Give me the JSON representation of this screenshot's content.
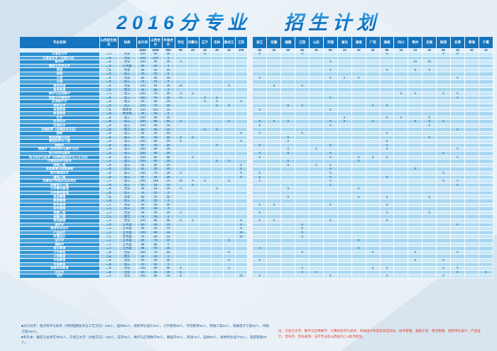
{
  "title": {
    "part1": "2016分专业",
    "part2": "招生计划"
  },
  "colors": {
    "header_blue": "#1474bd",
    "name_blue": "#2b91d2",
    "row_light": "#c7e7f8",
    "row_mid": "#a6d7f2",
    "title_blue": "#1079c9",
    "note_red": "#e03a2d",
    "note_blue": "#24629f"
  },
  "table": {
    "headers_left": [
      "专业名称",
      "山西招生批次",
      "科类",
      "总计划",
      "山西合计",
      "外省合计"
    ],
    "provinces_left": [
      "河北",
      "内蒙古",
      "辽宁",
      "吉林",
      "黑龙江",
      "江苏"
    ],
    "provinces_right": [
      "浙江",
      "安徽",
      "福建",
      "江西",
      "山东",
      "河南",
      "湖北",
      "湖南",
      "广西",
      "海南",
      "四川",
      "贵州",
      "云南",
      "陕西",
      "甘肃",
      "青海",
      "宁夏"
    ],
    "totals": {
      "total": 4260,
      "shanxi": 3268,
      "other": 992,
      "provinces": {
        "河北": 80,
        "内蒙古": 40,
        "辽宁": 30,
        "吉林": 30,
        "黑龙江": 30,
        "江苏": 100,
        "浙江": 92,
        "安徽": 20,
        "福建": 50,
        "江西": 60,
        "山东": 30,
        "河南": 80,
        "湖北": 10,
        "湖南": 30,
        "广西": 30,
        "海南": 80,
        "四川": 10,
        "贵州": 10,
        "云南": 30,
        "陕西": 80,
        "甘肃": 30,
        "青海": 30,
        "宁夏": 10
      }
    },
    "rows": [
      {
        "name": "汉语言文学",
        "batch": "二A",
        "cat": "文史",
        "total": 120,
        "shanxi": 90,
        "other": 30,
        "p": {
          "辽宁": 5,
          "浙江": 5,
          "江西": 5,
          "海南": 5,
          "陕西": 5,
          "甘肃": 5
        }
      },
      {
        "name": "汉语言文学（文秘方向）",
        "batch": "二B",
        "cat": "文史",
        "total": 120,
        "shanxi": 120,
        "other": 0,
        "p": {}
      },
      {
        "name": "秘书学",
        "batch": "二B",
        "cat": "文史",
        "total": 120,
        "shanxi": 90,
        "other": 30,
        "p": {
          "河北": 5,
          "河南": 5,
          "贵州": 10,
          "云南": 10
        }
      },
      {
        "name": "播音与主持艺术",
        "batch": "二B",
        "cat": "艺术类",
        "total": 50,
        "shanxi": 50,
        "other": 0,
        "p": {}
      },
      {
        "name": "英语",
        "batch": "二B",
        "cat": "文史",
        "total": 60,
        "shanxi": 40,
        "other": 20,
        "p": {
          "河南": 5,
          "海南": 5,
          "贵州": 5,
          "云南": 5
        }
      },
      {
        "name": "英语",
        "batch": "二B",
        "cat": "理工",
        "total": 20,
        "shanxi": 20,
        "other": 0,
        "p": {}
      },
      {
        "name": "日语",
        "batch": "二B",
        "cat": "文史",
        "total": 60,
        "shanxi": 35,
        "other": 25,
        "p": {
          "浙江": 5,
          "河南": 5,
          "湖北": 5,
          "湖南": 5,
          "甘肃": 5
        }
      },
      {
        "name": "日语",
        "batch": "二B",
        "cat": "理工",
        "total": 15,
        "shanxi": 15,
        "other": 0,
        "p": {}
      },
      {
        "name": "商务英语",
        "batch": "二B",
        "cat": "文史",
        "total": 120,
        "shanxi": 95,
        "other": 25,
        "p": {
          "河北": 10,
          "黑龙江": 5,
          "安徽": 5,
          "江西": 5
        }
      },
      {
        "name": "商务英语",
        "batch": "二B",
        "cat": "理工",
        "total": 30,
        "shanxi": 30,
        "other": 0,
        "p": {}
      },
      {
        "name": "数学与应用数学",
        "batch": "二A",
        "cat": "理工",
        "total": 100,
        "shanxi": 70,
        "other": 30,
        "p": {
          "河北": 5,
          "内蒙古": 5,
          "四川": 5,
          "贵州": 5,
          "陕西": 5,
          "甘肃": 5
        }
      },
      {
        "name": "信息与计算科学",
        "batch": "二B",
        "cat": "理工",
        "total": 100,
        "shanxi": 75,
        "other": 25,
        "p": {
          "河北": 5,
          "辽宁": 5,
          "吉林": 5,
          "河南": 5,
          "甘肃": 5
        }
      },
      {
        "name": "应用统计学",
        "batch": "二B",
        "cat": "理工",
        "total": 50,
        "shanxi": 35,
        "other": 15,
        "p": {
          "辽宁": 5,
          "吉林": 5,
          "江苏": 5
        }
      },
      {
        "name": "材料化学",
        "batch": "二B",
        "cat": "理工",
        "total": 100,
        "shanxi": 70,
        "other": 30,
        "p": {
          "吉林": 5,
          "黑龙江": 5,
          "福建": 5,
          "江西": 5,
          "广西": 5,
          "海南": 5
        }
      },
      {
        "name": "体育教育",
        "batch": "二B",
        "cat": "体育文",
        "total": 120,
        "shanxi": 110,
        "other": 10,
        "p": {
          "浙江": 5,
          "河南": 5
        }
      },
      {
        "name": "体育教育",
        "batch": "二B",
        "cat": "体育理",
        "total": 40,
        "shanxi": 40,
        "other": 0,
        "p": {}
      },
      {
        "name": "化学",
        "batch": "二B",
        "cat": "理工",
        "total": 100,
        "shanxi": 80,
        "other": 20,
        "p": {
          "湖北": 5,
          "海南": 5,
          "四川": 5,
          "云南": 5
        }
      },
      {
        "name": "应用化学",
        "batch": "二B",
        "cat": "理工",
        "total": 150,
        "shanxi": 95,
        "other": 55,
        "p": {
          "河北": 5,
          "黑龙江": 5,
          "浙江": 5,
          "安徽": 5,
          "福建": 5,
          "河南": 5,
          "湖北": 5,
          "广西": 5,
          "贵州": 5,
          "云南": 5,
          "陕西": 5
        }
      },
      {
        "name": "生物科学",
        "batch": "二B",
        "cat": "理工",
        "total": 100,
        "shanxi": 85,
        "other": 15,
        "p": {
          "浙江": 5,
          "河南": 5,
          "云南": 5
        }
      },
      {
        "name": "生物科学（生物技术方向）",
        "batch": "二B",
        "cat": "理工",
        "total": 50,
        "shanxi": 35,
        "other": 15,
        "p": {
          "辽宁": 5,
          "吉林": 5,
          "甘肃": 5
        }
      },
      {
        "name": "园林",
        "batch": "二B",
        "cat": "理工",
        "total": 50,
        "shanxi": 30,
        "other": 20,
        "p": {
          "江苏": 5,
          "浙江": 5,
          "江西": 5,
          "海南": 5
        }
      },
      {
        "name": "食品质量与安全",
        "batch": "二B",
        "cat": "理工",
        "total": 50,
        "shanxi": 30,
        "other": 20,
        "p": {
          "河北": 5,
          "内蒙古": 5,
          "福建": 5,
          "云南": 5
        }
      },
      {
        "name": "食品科学与工程",
        "batch": "二B",
        "cat": "理工",
        "total": 100,
        "shanxi": 80,
        "other": 20,
        "p": {
          "河北": 5,
          "江苏": 5,
          "福建": 5,
          "海南": 5
        }
      },
      {
        "name": "物理学",
        "batch": "二B",
        "cat": "理工",
        "total": 50,
        "shanxi": 30,
        "other": 20,
        "p": {
          "吉林": 5,
          "浙江": 5,
          "河南": 5,
          "海南": 5
        }
      },
      {
        "name": "物理学（光伏材料与器件方向）",
        "batch": "二B",
        "cat": "理工",
        "total": 100,
        "shanxi": 80,
        "other": 20,
        "p": {
          "福建": 5,
          "山东": 5,
          "海南": 5,
          "甘肃": 5
        }
      },
      {
        "name": "电子科学与技术",
        "batch": "二B",
        "cat": "理工",
        "total": 100,
        "shanxi": 80,
        "other": 20,
        "p": {
          "浙江": 5,
          "福建": 5,
          "河南": 5,
          "陕西": 5
        }
      },
      {
        "name": "电子科学与技术（印制电路技术与工艺方向）",
        "batch": "二B",
        "cat": "理工",
        "total": 100,
        "shanxi": 65,
        "other": 35,
        "p": {
          "内蒙古": 5,
          "浙江": 5,
          "河南": 5,
          "湖南": 5,
          "广西": 5,
          "海南": 5,
          "甘肃": 5
        }
      },
      {
        "name": "计算机科学与技术",
        "batch": "二A",
        "cat": "理工",
        "total": 100,
        "shanxi": 80,
        "other": 20,
        "p": {
          "吉林": 5,
          "黑龙江": 5,
          "福建": 5,
          "湖南": 5
        }
      },
      {
        "name": "网络工程",
        "batch": "二B",
        "cat": "理工",
        "total": 50,
        "shanxi": 30,
        "other": 20,
        "p": {
          "江苏": 5,
          "福建": 5,
          "山东": 5,
          "河南": 5
        }
      },
      {
        "name": "信息管理与信息系统",
        "batch": "二B",
        "cat": "理工",
        "total": 50,
        "shanxi": 35,
        "other": 15,
        "p": {
          "江苏": 5,
          "河南": 5,
          "贵州": 5
        }
      },
      {
        "name": "数字媒体技术",
        "batch": "二B",
        "cat": "理工",
        "total": 100,
        "shanxi": 75,
        "other": 25,
        "p": {
          "河北": 5,
          "江苏": 5,
          "浙江": 5,
          "河南": 5,
          "陕西": 5
        }
      },
      {
        "name": "通信工程",
        "batch": "二B",
        "cat": "理工",
        "total": 50,
        "shanxi": 30,
        "other": 20,
        "p": {
          "江苏": 5,
          "浙江": 5,
          "河南": 5,
          "海南": 5
        }
      },
      {
        "name": "机械设计制造及其自动化",
        "batch": "二A",
        "cat": "理工",
        "total": 200,
        "shanxi": 158,
        "other": 42,
        "p": {
          "河北": 10,
          "内蒙古": 5,
          "辽宁": 5,
          "黑龙江": 5,
          "浙江": 5,
          "河南": 5,
          "陕西": 5,
          "甘肃": 2
        }
      },
      {
        "name": "机械电子工程",
        "batch": "二B",
        "cat": "理工",
        "total": 50,
        "shanxi": 35,
        "other": 15,
        "p": {
          "内蒙古": 5,
          "河南": 5,
          "甘肃": 5
        }
      },
      {
        "name": "公共事业管理",
        "batch": "二B",
        "cat": "文史",
        "total": 35,
        "shanxi": 15,
        "other": 20,
        "p": {
          "河北": 5,
          "吉林": 5,
          "福建": 5,
          "湖南": 5
        }
      },
      {
        "name": "公共事业管理",
        "batch": "二B",
        "cat": "理工",
        "total": 15,
        "shanxi": 15,
        "other": 0,
        "p": {}
      },
      {
        "name": "旅游管理",
        "batch": "二B",
        "cat": "文史",
        "total": 90,
        "shanxi": 70,
        "other": 20,
        "p": {
          "福建": 5,
          "湖南": 5,
          "海南": 5,
          "云南": 5
        }
      },
      {
        "name": "旅游管理",
        "batch": "二B",
        "cat": "理工",
        "total": 30,
        "shanxi": 30,
        "other": 0,
        "p": {}
      },
      {
        "name": "财务管理",
        "batch": "二A",
        "cat": "文史",
        "total": 60,
        "shanxi": 40,
        "other": 20,
        "p": {
          "浙江": 5,
          "安徽": 5,
          "河南": 5,
          "海南": 5
        }
      },
      {
        "name": "财务管理",
        "batch": "二A",
        "cat": "理工",
        "total": 60,
        "shanxi": 60,
        "other": 0,
        "p": {}
      },
      {
        "name": "金融工程",
        "batch": "二A",
        "cat": "文史",
        "total": 45,
        "shanxi": 25,
        "other": 20,
        "p": {
          "河北": 5,
          "浙江": 5,
          "海南": 5,
          "云南": 5
        }
      },
      {
        "name": "金融工程",
        "batch": "二A",
        "cat": "理工",
        "total": 75,
        "shanxi": 75,
        "other": 0,
        "p": {}
      },
      {
        "name": "物流管理",
        "batch": "二A",
        "cat": "文史",
        "total": 120,
        "shanxi": 85,
        "other": 35,
        "p": {
          "河北": 5,
          "内蒙古": 5,
          "江苏": 5,
          "浙江": 5,
          "安徽": 5,
          "河南": 5,
          "海南": 5
        }
      },
      {
        "name": "美术学",
        "batch": "二B",
        "cat": "艺术类",
        "total": 50,
        "shanxi": 35,
        "other": 15,
        "p": {
          "江苏": 5,
          "江西": 5,
          "甘肃": 5
        }
      },
      {
        "name": "视觉传达设计",
        "batch": "二A",
        "cat": "艺术类",
        "total": 50,
        "shanxi": 40,
        "other": 10,
        "p": {
          "江苏": 5,
          "江西": 5
        }
      },
      {
        "name": "产品设计",
        "batch": "二A",
        "cat": "艺术类",
        "total": 100,
        "shanxi": 85,
        "other": 15,
        "p": {
          "江苏": 10,
          "江西": 5
        }
      },
      {
        "name": "环境设计",
        "batch": "二A",
        "cat": "艺术类",
        "total": 75,
        "shanxi": 60,
        "other": 15,
        "p": {
          "江苏": 10,
          "江西": 5
        }
      },
      {
        "name": "音乐学",
        "batch": "二A",
        "cat": "艺术类",
        "total": 80,
        "shanxi": 70,
        "other": 10,
        "p": {
          "黑龙江": 5,
          "湖南": 5
        }
      },
      {
        "name": "舞蹈学",
        "batch": "二A",
        "cat": "艺术类",
        "total": 85,
        "shanxi": 85,
        "other": 0,
        "p": {}
      },
      {
        "name": "音乐表演",
        "batch": "二A",
        "cat": "艺术类",
        "total": 85,
        "shanxi": 75,
        "other": 10,
        "p": {
          "浙江": 5,
          "湖南": 5
        }
      },
      {
        "name": "小学教育",
        "batch": "二B",
        "cat": "文史",
        "total": 100,
        "shanxi": 75,
        "other": 25,
        "p": {
          "黑龙江": 5,
          "江西": 5,
          "广西": 5,
          "贵州": 5,
          "甘肃": 5
        }
      },
      {
        "name": "小学教育",
        "batch": "二B",
        "cat": "理工",
        "total": 20,
        "shanxi": 20,
        "other": 0,
        "p": {}
      },
      {
        "name": "学前教育",
        "batch": "二B",
        "cat": "文史",
        "total": 50,
        "shanxi": 30,
        "other": 20,
        "p": {
          "黑龙江": 5,
          "浙江": 5,
          "贵州": 5,
          "陕西": 5
        }
      },
      {
        "name": "学前教育",
        "batch": "二B",
        "cat": "理工",
        "total": 10,
        "shanxi": 10,
        "other": 0,
        "p": {}
      },
      {
        "name": "思想政治教育",
        "batch": "二B",
        "cat": "文史",
        "total": 120,
        "shanxi": 85,
        "other": 35,
        "p": {
          "河北": 5,
          "黑龙江": 5,
          "江西": 5,
          "广西": 5,
          "海南": 5,
          "陕西": 5,
          "甘肃": 5
        }
      },
      {
        "name": "历史学",
        "batch": "二B",
        "cat": "文史",
        "total": 60,
        "shanxi": 35,
        "other": 25,
        "p": {
          "河北": 5,
          "江西": 5,
          "山东": 5,
          "甘肃": 5,
          "宁夏": 5
        }
      },
      {
        "name": "法学",
        "batch": "二A",
        "cat": "文史",
        "total": 120,
        "shanxi": 80,
        "other": 40,
        "p": {
          "河北": 5,
          "江苏": 15,
          "浙江": 5,
          "河南": 5,
          "海南": 5,
          "陕西": 5
        }
      }
    ]
  },
  "notes": {
    "left1": "■对口升学：电子科学与技术（印制电路技术与工艺方向）100人，园林60人，视觉传达设计25人，小学教育50人，学前教育50人，网络工程60人，机械电子工程50人，印刷工程100人。",
    "left2": "■专升本：播音与主持艺术60人，汉语言文学（文秘方向）130人，法学50人，数学与应用数学50人，舞蹈学40人，英语70人，园林60人，视觉传达设计25人，旅游管理60人。",
    "right": "注：汉语言文学、数学与应用数学、计算机科学与技术、机械设计制造及其自动化、财务管理、金融工程、物流管理、视觉传达设计、产品设计、音乐学、音乐表演、法学专业在山西省为二A批次招生。"
  }
}
